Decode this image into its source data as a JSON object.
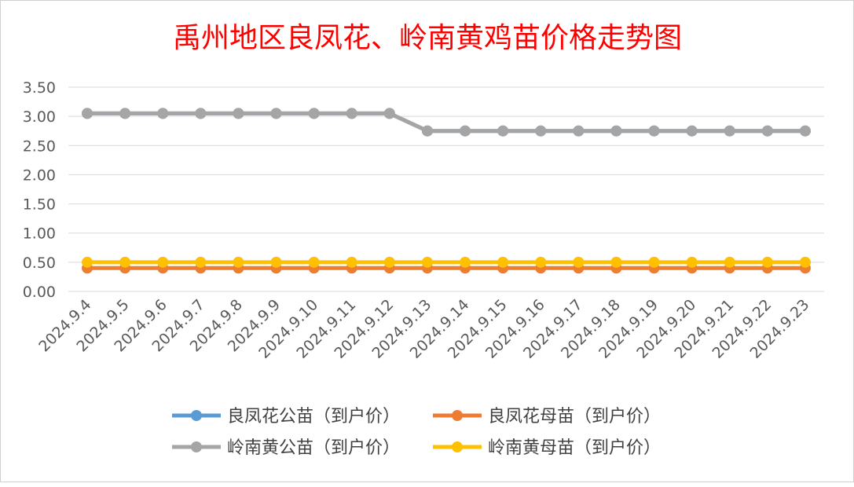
{
  "chart_data": {
    "type": "line",
    "title": "禹州地区良凤花、岭南黄鸡苗价格走势图",
    "xlabel": "",
    "ylabel": "",
    "ylim": [
      0,
      3.5
    ],
    "yticks": [
      "0.00",
      "0.50",
      "1.00",
      "1.50",
      "2.00",
      "2.50",
      "3.00",
      "3.50"
    ],
    "grid": true,
    "legend_position": "bottom",
    "x": [
      "2024.9.4",
      "2024.9.5",
      "2024.9.6",
      "2024.9.7",
      "2024.9.8",
      "2024.9.9",
      "2024.9.10",
      "2024.9.11",
      "2024.9.12",
      "2024.9.13",
      "2024.9.14",
      "2024.9.15",
      "2024.9.16",
      "2024.9.17",
      "2024.9.18",
      "2024.9.19",
      "2024.9.20",
      "2024.9.21",
      "2024.9.22",
      "2024.9.23"
    ],
    "series": [
      {
        "name": "良凤花公苗（到户价）",
        "color": "#5b9bd5",
        "values": [
          3.05,
          3.05,
          3.05,
          3.05,
          3.05,
          3.05,
          3.05,
          3.05,
          3.05,
          2.75,
          2.75,
          2.75,
          2.75,
          2.75,
          2.75,
          2.75,
          2.75,
          2.75,
          2.75,
          2.75
        ]
      },
      {
        "name": "良凤花母苗（到户价）",
        "color": "#ed7d31",
        "values": [
          0.4,
          0.4,
          0.4,
          0.4,
          0.4,
          0.4,
          0.4,
          0.4,
          0.4,
          0.4,
          0.4,
          0.4,
          0.4,
          0.4,
          0.4,
          0.4,
          0.4,
          0.4,
          0.4,
          0.4
        ]
      },
      {
        "name": "岭南黄公苗（到户价）",
        "color": "#a5a5a5",
        "values": [
          3.05,
          3.05,
          3.05,
          3.05,
          3.05,
          3.05,
          3.05,
          3.05,
          3.05,
          2.75,
          2.75,
          2.75,
          2.75,
          2.75,
          2.75,
          2.75,
          2.75,
          2.75,
          2.75,
          2.75
        ]
      },
      {
        "name": "岭南黄母苗（到户价）",
        "color": "#ffc000",
        "values": [
          0.5,
          0.5,
          0.5,
          0.5,
          0.5,
          0.5,
          0.5,
          0.5,
          0.5,
          0.5,
          0.5,
          0.5,
          0.5,
          0.5,
          0.5,
          0.5,
          0.5,
          0.5,
          0.5,
          0.5
        ]
      }
    ],
    "title_color": "#ff0000"
  }
}
